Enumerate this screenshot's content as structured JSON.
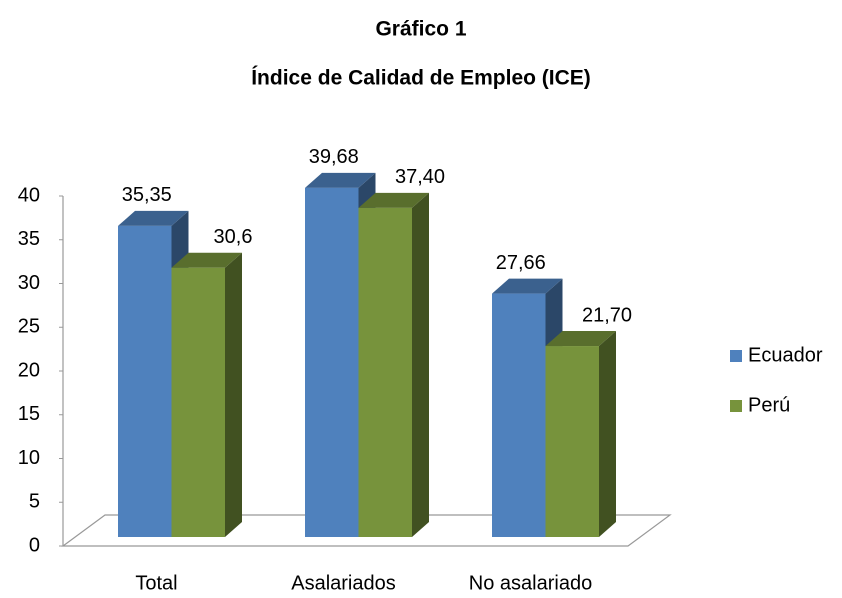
{
  "chart_data": {
    "type": "bar3d",
    "title": "Gráfico 1",
    "subtitle": "Índice de Calidad de Empleo (ICE)",
    "categories": [
      "Total",
      "Asalariados",
      "No asalariado"
    ],
    "series": [
      {
        "name": "Ecuador",
        "color": "#4f81bd",
        "values": [
          35.35,
          39.68,
          27.66
        ],
        "value_labels": [
          "35,35",
          "39,68",
          "27,66"
        ]
      },
      {
        "name": "Perú",
        "color": "#77933c",
        "values": [
          30.6,
          37.4,
          21.7
        ],
        "value_labels": [
          "30,6",
          "37,40",
          "21,70"
        ]
      }
    ],
    "ylim": [
      0,
      40
    ],
    "yticks": [
      0,
      5,
      10,
      15,
      20,
      25,
      30,
      35,
      40
    ],
    "legend": "right"
  }
}
